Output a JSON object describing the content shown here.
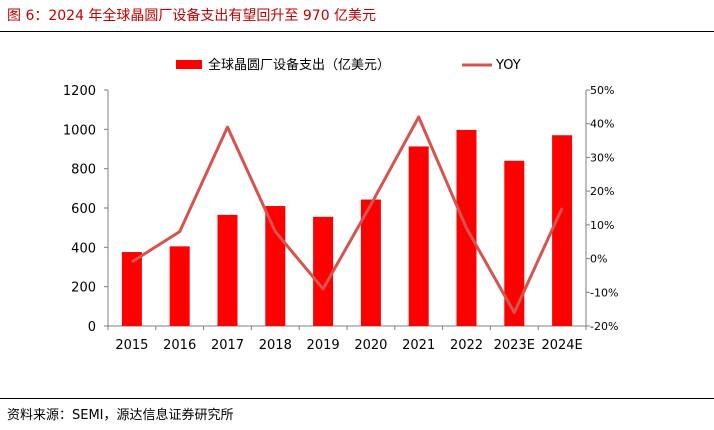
{
  "figure": {
    "title": "图 6：2024 年全球晶圆厂设备支出有望回升至 970 亿美元",
    "source": "资料来源：SEMI，源达信息证券研究所"
  },
  "colors": {
    "bar": "#ff0000",
    "line": "#d6534e",
    "title": "#c00000"
  },
  "chart_data": {
    "type": "bar",
    "categories": [
      "2015",
      "2016",
      "2017",
      "2018",
      "2019",
      "2020",
      "2021",
      "2022",
      "2023E",
      "2024E"
    ],
    "series": [
      {
        "name": "全球晶圆厂设备支出（亿美元）",
        "type": "bar",
        "axis": "left",
        "values": [
          376,
          405,
          565,
          610,
          555,
          643,
          913,
          997,
          840,
          970
        ]
      },
      {
        "name": "YOY",
        "type": "line",
        "axis": "right",
        "values": [
          -1,
          8,
          39,
          8,
          -9,
          16,
          42,
          9,
          -16,
          15
        ]
      }
    ],
    "y_left": {
      "min": 0,
      "max": 1200,
      "ticks": [
        "0",
        "200",
        "400",
        "600",
        "800",
        "1000",
        "1200"
      ]
    },
    "y_right": {
      "min": -20,
      "max": 50,
      "ticks": [
        "-20%",
        "-10%",
        "0%",
        "10%",
        "20%",
        "30%",
        "40%",
        "50%"
      ]
    },
    "legend": {
      "position": "top"
    },
    "grid": false
  }
}
